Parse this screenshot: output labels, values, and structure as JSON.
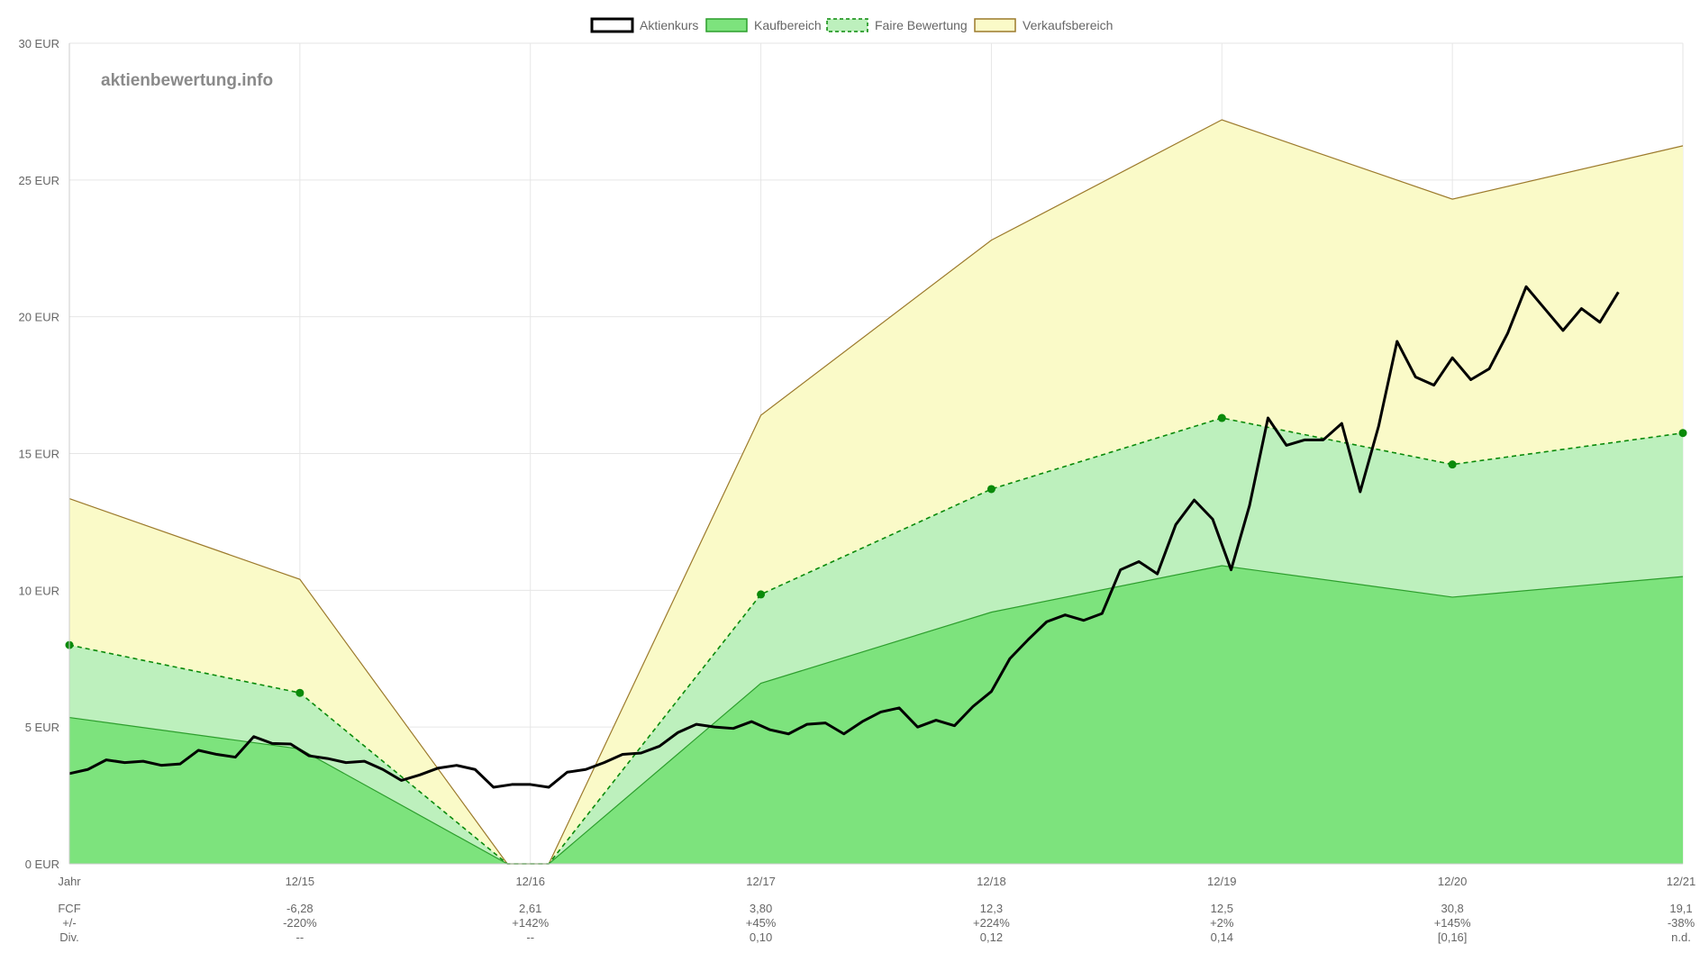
{
  "watermark": "aktienbewertung.info",
  "legend": [
    {
      "name": "Aktienkurs",
      "fill": "#ffffff",
      "stroke": "#000000",
      "dash": false
    },
    {
      "name": "Kaufbereich",
      "fill": "#7de37d",
      "stroke": "#2d9e2d",
      "dash": false
    },
    {
      "name": "Faire Bewertung",
      "fill": "#bdf0bd",
      "stroke": "#0a8a0a",
      "dash": true
    },
    {
      "name": "Verkaufsbereich",
      "fill": "#fafac8",
      "stroke": "#9c7a2c",
      "dash": false
    }
  ],
  "colors": {
    "sell_fill": "#fafac8",
    "sell_line": "#9c7a2c",
    "fair_fill": "#bdf0bd",
    "fair_line": "#0a8a0a",
    "buy_fill": "#7de37d",
    "buy_line": "#2d9e2d",
    "price_line": "#000000",
    "grid": "#e6e6e6"
  },
  "chart_data": {
    "type": "area",
    "y_unit": "EUR",
    "ylim": [
      0,
      30
    ],
    "y_ticks": [
      "0 EUR",
      "5 EUR",
      "10 EUR",
      "15 EUR",
      "20 EUR",
      "25 EUR",
      "30 EUR"
    ],
    "y_tick_values": [
      0,
      5,
      10,
      15,
      20,
      25,
      30
    ],
    "x_ticks": [
      "Jahr",
      "12/15",
      "12/16",
      "12/17",
      "12/18",
      "12/19",
      "12/20",
      "12/21"
    ],
    "grid": true,
    "legend_position": "top-center",
    "series": [
      {
        "name": "Verkaufsbereich",
        "points": [
          [
            0,
            13.35
          ],
          [
            1,
            10.4
          ],
          [
            1.9,
            0
          ],
          [
            2.08,
            0
          ],
          [
            3,
            16.4
          ],
          [
            4,
            22.8
          ],
          [
            5,
            27.2
          ],
          [
            6,
            24.3
          ],
          [
            7,
            26.25
          ]
        ]
      },
      {
        "name": "Faire Bewertung",
        "points": [
          [
            0,
            8.0
          ],
          [
            1,
            6.25
          ],
          [
            1.9,
            0
          ],
          [
            2.08,
            0
          ],
          [
            3,
            9.85
          ],
          [
            4,
            13.7
          ],
          [
            5,
            16.3
          ],
          [
            6,
            14.6
          ],
          [
            7,
            15.75
          ]
        ],
        "markers": [
          [
            0,
            8.0
          ],
          [
            1,
            6.25
          ],
          [
            3,
            9.85
          ],
          [
            4,
            13.7
          ],
          [
            5,
            16.3
          ],
          [
            6,
            14.6
          ],
          [
            7,
            15.75
          ]
        ]
      },
      {
        "name": "Kaufbereich",
        "points": [
          [
            0,
            5.35
          ],
          [
            1,
            4.2
          ],
          [
            1.9,
            0
          ],
          [
            2.08,
            0
          ],
          [
            3,
            6.6
          ],
          [
            4,
            9.2
          ],
          [
            5,
            10.9
          ],
          [
            6,
            9.75
          ],
          [
            7,
            10.5
          ]
        ]
      },
      {
        "name": "Aktienkurs",
        "points": [
          [
            0.0,
            3.3
          ],
          [
            0.08,
            3.45
          ],
          [
            0.16,
            3.8
          ],
          [
            0.24,
            3.7
          ],
          [
            0.32,
            3.75
          ],
          [
            0.4,
            3.6
          ],
          [
            0.48,
            3.65
          ],
          [
            0.56,
            4.15
          ],
          [
            0.64,
            4.0
          ],
          [
            0.72,
            3.9
          ],
          [
            0.8,
            4.65
          ],
          [
            0.88,
            4.4
          ],
          [
            0.96,
            4.38
          ],
          [
            1.04,
            3.95
          ],
          [
            1.12,
            3.85
          ],
          [
            1.2,
            3.7
          ],
          [
            1.28,
            3.75
          ],
          [
            1.36,
            3.45
          ],
          [
            1.44,
            3.05
          ],
          [
            1.52,
            3.25
          ],
          [
            1.6,
            3.5
          ],
          [
            1.68,
            3.6
          ],
          [
            1.76,
            3.45
          ],
          [
            1.84,
            2.8
          ],
          [
            1.92,
            2.9
          ],
          [
            2.0,
            2.9
          ],
          [
            2.08,
            2.8
          ],
          [
            2.16,
            3.35
          ],
          [
            2.24,
            3.45
          ],
          [
            2.32,
            3.7
          ],
          [
            2.4,
            4.0
          ],
          [
            2.48,
            4.05
          ],
          [
            2.56,
            4.3
          ],
          [
            2.64,
            4.8
          ],
          [
            2.72,
            5.1
          ],
          [
            2.8,
            5.0
          ],
          [
            2.88,
            4.95
          ],
          [
            2.96,
            5.2
          ],
          [
            3.04,
            4.9
          ],
          [
            3.12,
            4.75
          ],
          [
            3.2,
            5.1
          ],
          [
            3.28,
            5.15
          ],
          [
            3.36,
            4.75
          ],
          [
            3.44,
            5.2
          ],
          [
            3.52,
            5.55
          ],
          [
            3.6,
            5.7
          ],
          [
            3.68,
            5.0
          ],
          [
            3.76,
            5.25
          ],
          [
            3.84,
            5.05
          ],
          [
            3.92,
            5.75
          ],
          [
            4.0,
            6.3
          ],
          [
            4.08,
            7.5
          ],
          [
            4.16,
            8.2
          ],
          [
            4.24,
            8.85
          ],
          [
            4.32,
            9.1
          ],
          [
            4.4,
            8.9
          ],
          [
            4.48,
            9.15
          ],
          [
            4.56,
            10.75
          ],
          [
            4.64,
            11.05
          ],
          [
            4.72,
            10.6
          ],
          [
            4.8,
            12.4
          ],
          [
            4.88,
            13.3
          ],
          [
            4.96,
            12.6
          ],
          [
            5.04,
            10.75
          ],
          [
            5.12,
            13.1
          ],
          [
            5.2,
            16.3
          ],
          [
            5.28,
            15.3
          ],
          [
            5.36,
            15.5
          ],
          [
            5.44,
            15.5
          ],
          [
            5.52,
            16.1
          ],
          [
            5.6,
            13.6
          ],
          [
            5.68,
            16.0
          ],
          [
            5.76,
            19.1
          ],
          [
            5.84,
            17.8
          ],
          [
            5.92,
            17.5
          ],
          [
            6.0,
            18.5
          ],
          [
            6.08,
            17.7
          ],
          [
            6.16,
            18.1
          ],
          [
            6.24,
            19.4
          ],
          [
            6.32,
            21.1
          ],
          [
            6.4,
            20.3
          ],
          [
            6.48,
            19.5
          ],
          [
            6.56,
            20.3
          ],
          [
            6.64,
            19.8
          ],
          [
            6.72,
            20.9
          ]
        ]
      }
    ]
  },
  "table": {
    "rows": [
      {
        "label": "FCF",
        "values": [
          "-6,28",
          "2,61",
          "3,80",
          "12,3",
          "12,5",
          "30,8",
          "19,1"
        ]
      },
      {
        "label": "+/-",
        "values": [
          "-220%",
          "+142%",
          "+45%",
          "+224%",
          "+2%",
          "+145%",
          "-38%"
        ]
      },
      {
        "label": "Div.",
        "values": [
          "--",
          "--",
          "0,10",
          "0,12",
          "0,14",
          "[0,16]",
          "n.d."
        ]
      }
    ]
  }
}
